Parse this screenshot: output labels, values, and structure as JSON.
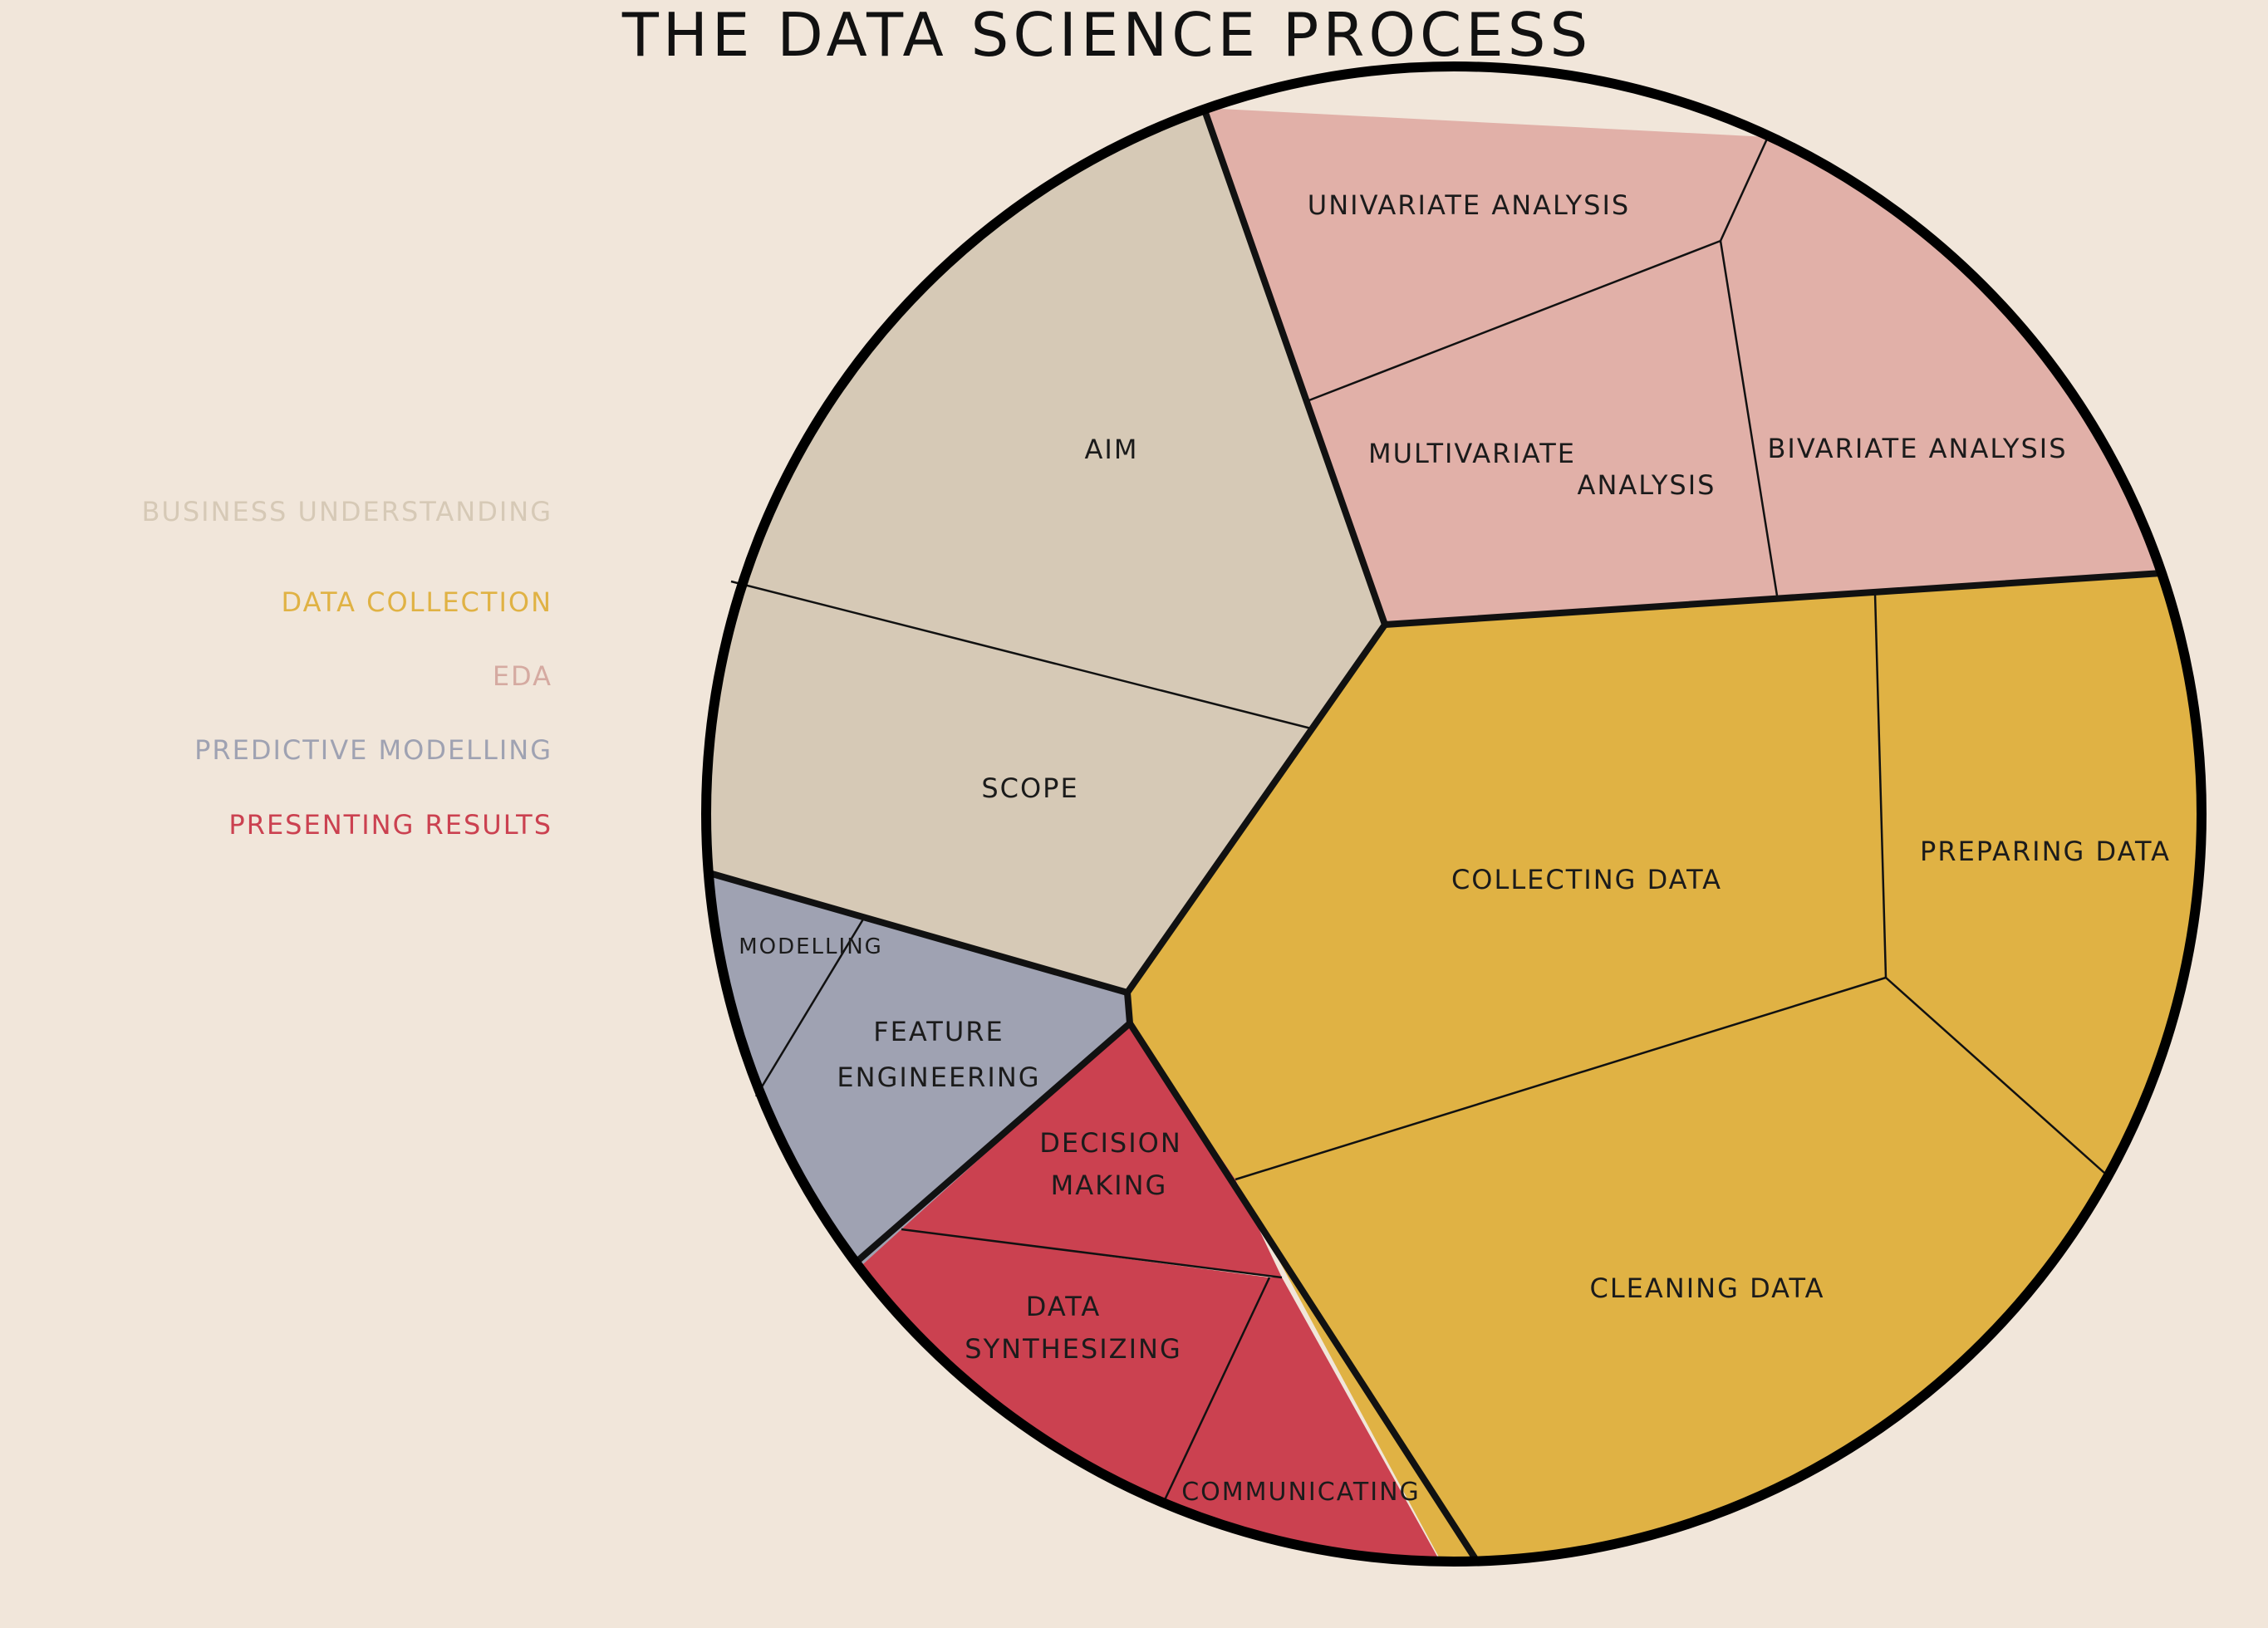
{
  "title": "THE DATA SCIENCE PROCESS",
  "legend": [
    {
      "label": "BUSINESS UNDERSTANDING",
      "color": "#d6c9b6"
    },
    {
      "label": "DATA COLLECTION",
      "color": "#e0b244"
    },
    {
      "label": "EDA",
      "color": "#d5aaa1"
    },
    {
      "label": "PREDICTIVE MODELLING",
      "color": "#9fa2b2"
    },
    {
      "label": "PRESENTING RESULTS",
      "color": "#cb4150"
    }
  ],
  "segments": [
    {
      "id": "aim",
      "label": "AIM",
      "color": "#d6c9b6"
    },
    {
      "id": "scope",
      "label": "SCOPE",
      "color": "#d6c9b6"
    },
    {
      "id": "univariate",
      "label": "UNIVARIATE ANALYSIS",
      "color": "#e1b0a8"
    },
    {
      "id": "multivariate",
      "label_line1": "MULTIVARIATE",
      "label_line2": "ANALYSIS",
      "color": "#e1b0a8"
    },
    {
      "id": "bivariate",
      "label": "BIVARIATE ANALYSIS",
      "color": "#e1b0a8"
    },
    {
      "id": "collecting",
      "label": "COLLECTING DATA",
      "color": "#e0b244"
    },
    {
      "id": "preparing",
      "label": "PREPARING DATA",
      "color": "#e0b244"
    },
    {
      "id": "cleaning",
      "label": "CLEANING DATA",
      "color": "#e0b244"
    },
    {
      "id": "modelling",
      "label": "MODELLING",
      "color": "#9fa2b2"
    },
    {
      "id": "feature",
      "label_line1": "FEATURE",
      "label_line2": "ENGINEERING",
      "color": "#9fa2b2"
    },
    {
      "id": "decision",
      "label_line1": "DECISION",
      "label_line2": "MAKING",
      "color": "#cb4150"
    },
    {
      "id": "synthesizing",
      "label_line1": "DATA",
      "label_line2": "SYNTHESIZING",
      "color": "#cb4150"
    },
    {
      "id": "communicating",
      "label": "COMMUNICATING",
      "color": "#cb4150"
    }
  ]
}
